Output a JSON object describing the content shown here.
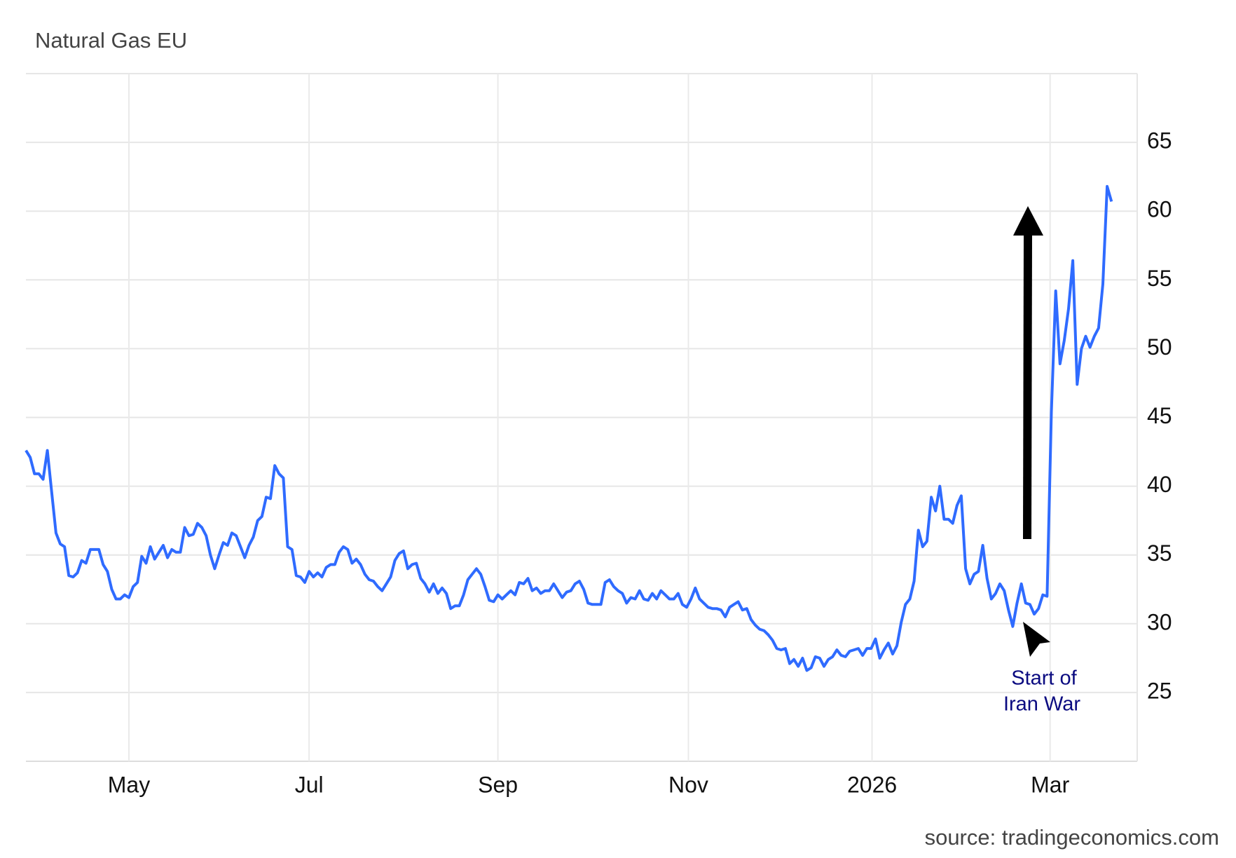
{
  "chart_data": {
    "type": "line",
    "title": "Natural Gas EU",
    "source": "source: tradingeconomics.com",
    "color": "#2f6bff",
    "values": [
      42.6,
      42.1,
      40.9,
      40.9,
      40.5,
      42.6,
      39.6,
      36.6,
      35.8,
      35.6,
      33.5,
      33.4,
      33.7,
      34.6,
      34.4,
      35.4,
      35.4,
      35.4,
      34.3,
      33.8,
      32.5,
      31.8,
      31.8,
      32.1,
      31.9,
      32.7,
      33.0,
      34.9,
      34.4,
      35.6,
      34.7,
      35.2,
      35.7,
      34.8,
      35.4,
      35.2,
      35.2,
      37.0,
      36.4,
      36.5,
      37.3,
      37.0,
      36.4,
      35.0,
      34.0,
      35.0,
      35.9,
      35.7,
      36.6,
      36.4,
      35.6,
      34.8,
      35.7,
      36.3,
      37.5,
      37.8,
      39.2,
      39.1,
      41.5,
      40.9,
      40.6,
      35.6,
      35.4,
      33.5,
      33.4,
      33.0,
      33.8,
      33.4,
      33.7,
      33.4,
      34.1,
      34.3,
      34.3,
      35.2,
      35.6,
      35.4,
      34.4,
      34.7,
      34.3,
      33.6,
      33.2,
      33.1,
      32.7,
      32.4,
      32.9,
      33.4,
      34.6,
      35.1,
      35.3,
      34.0,
      34.3,
      34.4,
      33.3,
      32.9,
      32.3,
      32.9,
      32.2,
      32.6,
      32.2,
      31.1,
      31.3,
      31.3,
      32.1,
      33.2,
      33.6,
      34.0,
      33.6,
      32.7,
      31.7,
      31.6,
      32.1,
      31.8,
      32.1,
      32.4,
      32.1,
      33.0,
      32.9,
      33.3,
      32.4,
      32.6,
      32.2,
      32.4,
      32.4,
      32.9,
      32.4,
      31.9,
      32.3,
      32.4,
      32.9,
      33.1,
      32.5,
      31.5,
      31.4,
      31.4,
      31.4,
      33.0,
      33.2,
      32.7,
      32.4,
      32.2,
      31.5,
      31.9,
      31.8,
      32.4,
      31.8,
      31.7,
      32.2,
      31.8,
      32.4,
      32.1,
      31.8,
      31.8,
      32.2,
      31.4,
      31.2,
      31.8,
      32.6,
      31.8,
      31.5,
      31.2,
      31.1,
      31.1,
      31.0,
      30.5,
      31.2,
      31.4,
      31.6,
      31.0,
      31.1,
      30.3,
      29.9,
      29.6,
      29.5,
      29.2,
      28.8,
      28.2,
      28.1,
      28.2,
      27.1,
      27.4,
      26.9,
      27.5,
      26.6,
      26.8,
      27.6,
      27.5,
      26.9,
      27.4,
      27.6,
      28.1,
      27.7,
      27.6,
      28.0,
      28.1,
      28.2,
      27.7,
      28.2,
      28.2,
      28.9,
      27.5,
      28.1,
      28.6,
      27.8,
      28.4,
      30.1,
      31.4,
      31.8,
      33.1,
      36.8,
      35.6,
      36.0,
      39.2,
      38.2,
      40.0,
      37.6,
      37.6,
      37.3,
      38.6,
      39.3,
      34.0,
      32.9,
      33.6,
      33.8,
      35.7,
      33.3,
      31.8,
      32.2,
      32.9,
      32.4,
      31.0,
      29.8,
      31.5,
      32.9,
      31.5,
      31.4,
      30.7,
      31.1,
      32.1,
      32.0,
      45.4,
      54.2,
      48.9,
      50.6,
      52.9,
      56.4,
      47.4,
      50.0,
      50.9,
      50.1,
      50.9,
      51.5,
      54.7,
      61.8,
      60.7
    ],
    "xlim": [
      0,
      259
    ],
    "xticks": [
      {
        "value": 24,
        "label": "May"
      },
      {
        "value": 66,
        "label": "Jul"
      },
      {
        "value": 110,
        "label": "Sep"
      },
      {
        "value": 154.4,
        "label": "Nov"
      },
      {
        "value": 197.2,
        "label": "2026"
      },
      {
        "value": 238.7,
        "label": "Mar"
      }
    ],
    "ylim": [
      20,
      70
    ],
    "yticks": [
      25,
      30,
      35,
      40,
      45,
      50,
      55,
      60,
      65
    ],
    "grid": true,
    "annotation": [
      "Start of",
      "Iran War"
    ]
  }
}
